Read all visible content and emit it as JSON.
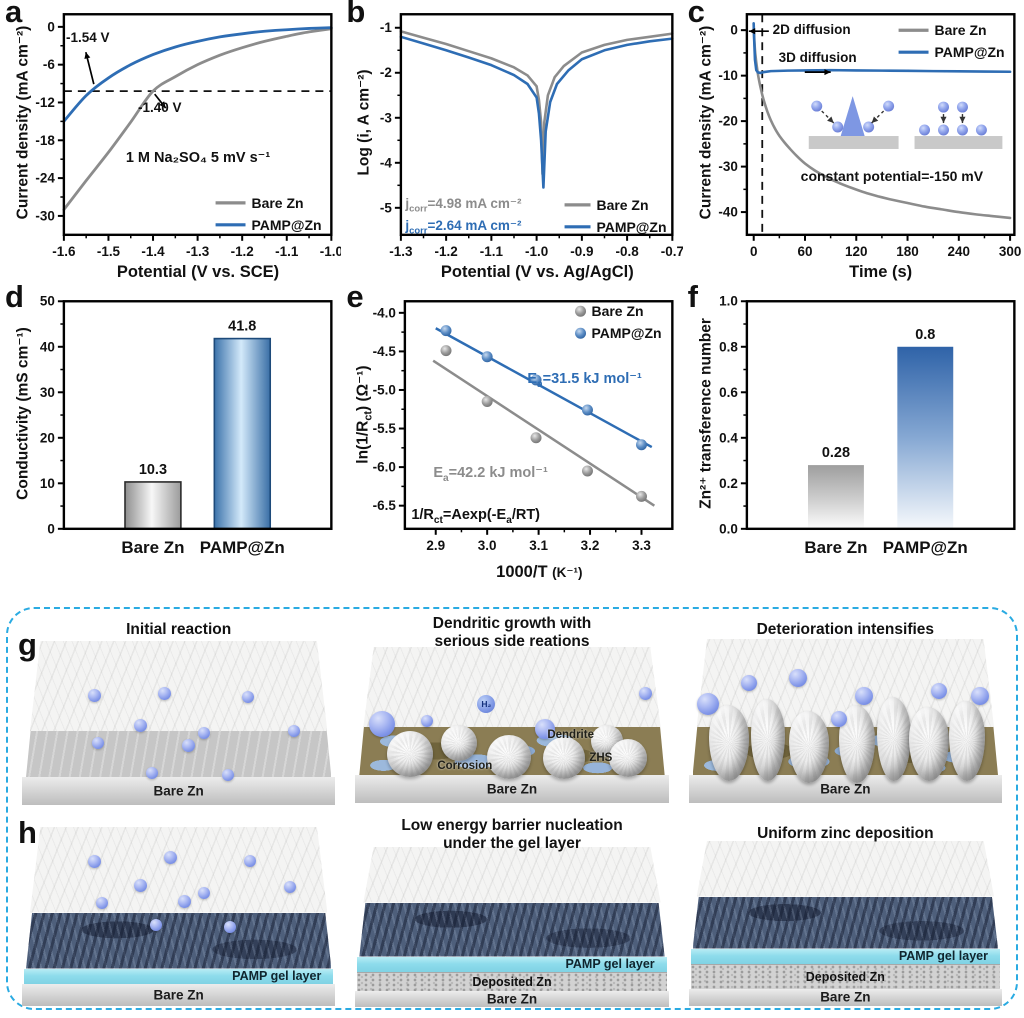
{
  "colors": {
    "bare_gray": "#8c8c8c",
    "pamp_blue": "#2e6db4",
    "sphere_blue": "#8ba2ea",
    "dashed_border": "#2aabe2",
    "gel_cyan": "#8edcec",
    "navy_layer": "#4e5f7b"
  },
  "chart_data": [
    {
      "id": "a",
      "type": "line",
      "panel_label": "a",
      "xlabel": "Potential (V vs. SCE)",
      "ylabel": "Current density (mA cm⁻²)",
      "xlim": [
        -1.6,
        -1.0
      ],
      "ylim": [
        -33,
        2
      ],
      "xtick_vals": [
        -1.6,
        -1.5,
        -1.4,
        -1.3,
        -1.2,
        -1.1,
        -1.0
      ],
      "xticks": [
        "-1.6",
        "-1.5",
        "-1.4",
        "-1.3",
        "-1.2",
        "-1.1",
        "-1.0"
      ],
      "ytick_vals": [
        0,
        -6,
        -12,
        -18,
        -24,
        -30
      ],
      "yticks": [
        "0",
        "-6",
        "-12",
        "-18",
        "-24",
        "-30"
      ],
      "dashed_line_y": -10.2,
      "annotations": {
        "pamp_v": "-1.54 V",
        "bare_v": "-1.40 V",
        "electrolyte": "1 M Na₂SO₄  5 mV s⁻¹"
      },
      "legend": [
        "Bare Zn",
        "PAMP@Zn"
      ],
      "series": [
        {
          "name": "Bare Zn",
          "color": "#8c8c8c",
          "points": [
            [
              -1.6,
              -29
            ],
            [
              -1.55,
              -24.4
            ],
            [
              -1.5,
              -19.9
            ],
            [
              -1.45,
              -15.1
            ],
            [
              -1.4,
              -10.2
            ],
            [
              -1.35,
              -7.9
            ],
            [
              -1.3,
              -6.0
            ],
            [
              -1.25,
              -4.5
            ],
            [
              -1.2,
              -3.3
            ],
            [
              -1.15,
              -2.3
            ],
            [
              -1.1,
              -1.5
            ],
            [
              -1.05,
              -0.8
            ],
            [
              -1.0,
              -0.3
            ]
          ]
        },
        {
          "name": "PAMP@Zn",
          "color": "#2e6db4",
          "points": [
            [
              -1.6,
              -15.0
            ],
            [
              -1.55,
              -10.9
            ],
            [
              -1.5,
              -8.1
            ],
            [
              -1.45,
              -6.0
            ],
            [
              -1.4,
              -4.4
            ],
            [
              -1.35,
              -3.2
            ],
            [
              -1.3,
              -2.3
            ],
            [
              -1.25,
              -1.6
            ],
            [
              -1.2,
              -1.1
            ],
            [
              -1.15,
              -0.7
            ],
            [
              -1.1,
              -0.45
            ],
            [
              -1.05,
              -0.25
            ],
            [
              -1.0,
              -0.12
            ]
          ]
        }
      ]
    },
    {
      "id": "b",
      "type": "line",
      "panel_label": "b",
      "xlabel": "Potential (V vs. Ag/AgCl)",
      "ylabel": "Log (i, A cm⁻²)",
      "xlim": [
        -1.3,
        -0.7
      ],
      "ylim": [
        -5.6,
        -0.7
      ],
      "xtick_vals": [
        -1.3,
        -1.2,
        -1.1,
        -1.0,
        -0.9,
        -0.8,
        -0.7
      ],
      "xticks": [
        "-1.3",
        "-1.2",
        "-1.1",
        "-1.0",
        "-0.9",
        "-0.8",
        "-0.7"
      ],
      "ytick_vals": [
        -1,
        -2,
        -3,
        -4,
        -5
      ],
      "yticks": [
        "-1",
        "-2",
        "-3",
        "-4",
        "-5"
      ],
      "annotations": {
        "bare_jcorr": {
          "pre": "j",
          "sub": "corr",
          "post": "=4.98 mA cm⁻²"
        },
        "pamp_jcorr": {
          "pre": "j",
          "sub": "corr",
          "post": "=2.64 mA cm⁻²"
        }
      },
      "legend": [
        "Bare Zn",
        "PAMP@Zn"
      ],
      "series": [
        {
          "name": "Bare Zn",
          "color": "#8c8c8c",
          "points": [
            [
              -1.3,
              -1.08
            ],
            [
              -1.25,
              -1.22
            ],
            [
              -1.2,
              -1.36
            ],
            [
              -1.15,
              -1.52
            ],
            [
              -1.1,
              -1.68
            ],
            [
              -1.05,
              -1.88
            ],
            [
              -1.02,
              -2.06
            ],
            [
              -1.0,
              -2.3
            ],
            [
              -0.995,
              -2.6
            ],
            [
              -0.99,
              -3.1
            ],
            [
              -0.987,
              -4.25
            ],
            [
              -0.983,
              -3.1
            ],
            [
              -0.975,
              -2.5
            ],
            [
              -0.96,
              -2.1
            ],
            [
              -0.94,
              -1.85
            ],
            [
              -0.9,
              -1.55
            ],
            [
              -0.85,
              -1.38
            ],
            [
              -0.8,
              -1.27
            ],
            [
              -0.75,
              -1.2
            ],
            [
              -0.7,
              -1.13
            ]
          ]
        },
        {
          "name": "PAMP@Zn",
          "color": "#2e6db4",
          "points": [
            [
              -1.3,
              -1.2
            ],
            [
              -1.25,
              -1.35
            ],
            [
              -1.2,
              -1.5
            ],
            [
              -1.15,
              -1.66
            ],
            [
              -1.1,
              -1.83
            ],
            [
              -1.05,
              -2.05
            ],
            [
              -1.02,
              -2.25
            ],
            [
              -1.0,
              -2.55
            ],
            [
              -0.995,
              -2.9
            ],
            [
              -0.99,
              -3.5
            ],
            [
              -0.985,
              -4.55
            ],
            [
              -0.98,
              -3.3
            ],
            [
              -0.97,
              -2.65
            ],
            [
              -0.955,
              -2.25
            ],
            [
              -0.93,
              -1.95
            ],
            [
              -0.9,
              -1.7
            ],
            [
              -0.85,
              -1.5
            ],
            [
              -0.8,
              -1.38
            ],
            [
              -0.75,
              -1.3
            ],
            [
              -0.7,
              -1.24
            ]
          ]
        }
      ]
    },
    {
      "id": "c",
      "type": "line",
      "panel_label": "c",
      "xlabel": "Time (s)",
      "ylabel": "Current density (mA cm⁻²)",
      "xlim": [
        -8,
        305
      ],
      "ylim": [
        -45,
        3.5
      ],
      "xtick_vals": [
        0,
        60,
        120,
        180,
        240,
        300
      ],
      "xticks": [
        "0",
        "60",
        "120",
        "180",
        "240",
        "300"
      ],
      "ytick_vals": [
        0,
        -10,
        -20,
        -30,
        -40
      ],
      "yticks": [
        "0",
        "-10",
        "-20",
        "-30",
        "-40"
      ],
      "dashed_line_x": 10,
      "annotations": {
        "diff2d": "2D diffusion",
        "diff3d": "3D diffusion",
        "potential": "constant potential=-150 mV"
      },
      "legend": [
        "Bare Zn",
        "PAMP@Zn"
      ],
      "series": [
        {
          "name": "Bare Zn",
          "color": "#8c8c8c",
          "points": [
            [
              0,
              0.5
            ],
            [
              1,
              -3
            ],
            [
              2,
              -5.5
            ],
            [
              4,
              -8.5
            ],
            [
              6,
              -10.8
            ],
            [
              8,
              -12.6
            ],
            [
              10,
              -14.2
            ],
            [
              13,
              -16.2
            ],
            [
              16,
              -17.9
            ],
            [
              20,
              -19.8
            ],
            [
              25,
              -21.7
            ],
            [
              30,
              -23.2
            ],
            [
              36,
              -24.7
            ],
            [
              42,
              -26
            ],
            [
              50,
              -27.6
            ],
            [
              60,
              -29.3
            ],
            [
              72,
              -30.9
            ],
            [
              85,
              -32.3
            ],
            [
              100,
              -33.6
            ],
            [
              115,
              -34.7
            ],
            [
              130,
              -35.7
            ],
            [
              145,
              -36.5
            ],
            [
              160,
              -37.2
            ],
            [
              180,
              -38
            ],
            [
              200,
              -38.8
            ],
            [
              220,
              -39.4
            ],
            [
              240,
              -40
            ],
            [
              260,
              -40.5
            ],
            [
              280,
              -40.9
            ],
            [
              300,
              -41.3
            ]
          ]
        },
        {
          "name": "PAMP@Zn",
          "color": "#2e6db4",
          "points": [
            [
              0,
              1.5
            ],
            [
              0.5,
              -2
            ],
            [
              1.5,
              -6.5
            ],
            [
              3,
              -8.8
            ],
            [
              5,
              -9.3
            ],
            [
              8,
              -9.4
            ],
            [
              12,
              -9.2
            ],
            [
              20,
              -9.0
            ],
            [
              40,
              -8.9
            ],
            [
              60,
              -8.85
            ],
            [
              90,
              -8.8
            ],
            [
              120,
              -8.85
            ],
            [
              150,
              -8.9
            ],
            [
              180,
              -8.95
            ],
            [
              210,
              -9.0
            ],
            [
              240,
              -9.05
            ],
            [
              270,
              -9.1
            ],
            [
              300,
              -9.15
            ]
          ]
        }
      ]
    },
    {
      "id": "d",
      "type": "bar",
      "panel_label": "d",
      "ylabel": "Conductivity (mS cm⁻¹)",
      "categories": [
        "Bare Zn",
        "PAMP@Zn"
      ],
      "values": [
        10.3,
        41.8
      ],
      "value_labels": [
        "10.3",
        "41.8"
      ],
      "ylim": [
        0,
        50
      ],
      "ytick_vals": [
        0,
        10,
        20,
        30,
        40,
        50
      ],
      "yticks": [
        "0",
        "10",
        "20",
        "30",
        "40",
        "50"
      ],
      "bar_styles": [
        "gray_cylinder",
        "blue_cylinder"
      ]
    },
    {
      "id": "e",
      "type": "scatter",
      "panel_label": "e",
      "xlabel_main": "1000/T",
      "xlabel_unit": "(K⁻¹)",
      "ylabel_parts": [
        "ln(1/R",
        "ct",
        ") (Ω⁻¹)"
      ],
      "xlim": [
        2.84,
        3.36
      ],
      "ylim": [
        -6.8,
        -3.85
      ],
      "xtick_vals": [
        2.9,
        3.0,
        3.1,
        3.2,
        3.3
      ],
      "xticks": [
        "2.9",
        "3.0",
        "3.1",
        "3.2",
        "3.3"
      ],
      "ytick_vals": [
        -4.0,
        -4.5,
        -5.0,
        -5.5,
        -6.0,
        -6.5
      ],
      "yticks": [
        "-4.0",
        "-4.5",
        "-5.0",
        "-5.5",
        "-6.0",
        "-6.5"
      ],
      "legend": [
        "Bare Zn",
        "PAMP@Zn"
      ],
      "annotations": {
        "pamp_ea": {
          "pre": "E",
          "sub": "a",
          "post": "=31.5 kJ mol⁻¹"
        },
        "bare_ea": {
          "pre": "E",
          "sub": "a",
          "post": "=42.2 kJ mol⁻¹"
        },
        "equation": {
          "p1": "1/R",
          "s1": "ct",
          "p2": "=Aexp(-E",
          "s2": "a",
          "p3": "/RT)"
        }
      },
      "series": [
        {
          "name": "Bare Zn",
          "color": "#8c8c8c",
          "points": [
            [
              2.92,
              -4.49
            ],
            [
              3.0,
              -5.15
            ],
            [
              3.095,
              -5.62
            ],
            [
              3.195,
              -6.05
            ],
            [
              3.3,
              -6.38
            ]
          ],
          "fit": [
            [
              2.895,
              -4.62
            ],
            [
              3.325,
              -6.5
            ]
          ]
        },
        {
          "name": "PAMP@Zn",
          "color": "#2e6db4",
          "points": [
            [
              2.92,
              -4.23
            ],
            [
              3.0,
              -4.57
            ],
            [
              3.095,
              -4.87
            ],
            [
              3.195,
              -5.26
            ],
            [
              3.3,
              -5.71
            ]
          ],
          "fit": [
            [
              2.9,
              -4.2
            ],
            [
              3.32,
              -5.74
            ]
          ]
        }
      ]
    },
    {
      "id": "f",
      "type": "bar",
      "panel_label": "f",
      "ylabel": "Zn²⁺ transference number",
      "categories": [
        "Bare Zn",
        "PAMP@Zn"
      ],
      "values": [
        0.28,
        0.8
      ],
      "value_labels": [
        "0.28",
        "0.8"
      ],
      "ylim": [
        0,
        1
      ],
      "ytick_vals": [
        0,
        0.2,
        0.4,
        0.6,
        0.8,
        1.0
      ],
      "yticks": [
        "0.0",
        "0.2",
        "0.4",
        "0.6",
        "0.8",
        "1.0"
      ],
      "bar_styles": [
        "gray_fade",
        "blue_fade"
      ]
    }
  ],
  "schematics": {
    "g": {
      "label": "g",
      "cells": [
        {
          "title": "Initial reaction",
          "base": "Bare Zn"
        },
        {
          "title_line1": "Dendritic growth with",
          "title_line2": "serious side reations",
          "base": "Bare Zn",
          "labels": {
            "h2": "H₂",
            "corrosion": "Corrosion",
            "dendrite": "Dendrite",
            "zhs": "ZHS"
          }
        },
        {
          "title": "Deterioration intensifies",
          "base": "Bare Zn"
        }
      ]
    },
    "h": {
      "label": "h",
      "cells": [
        {
          "base": "Bare Zn",
          "gel": "PAMP gel layer"
        },
        {
          "title_line1": "Low energy barrier nucleation",
          "title_line2": "under the gel layer",
          "base": "Bare Zn",
          "gel": "PAMP gel layer",
          "deposit": "Deposited Zn"
        },
        {
          "title": "Uniform zinc deposition",
          "base": "Bare Zn",
          "gel": "PAMP gel layer",
          "deposit": "Deposited Zn"
        }
      ]
    }
  }
}
